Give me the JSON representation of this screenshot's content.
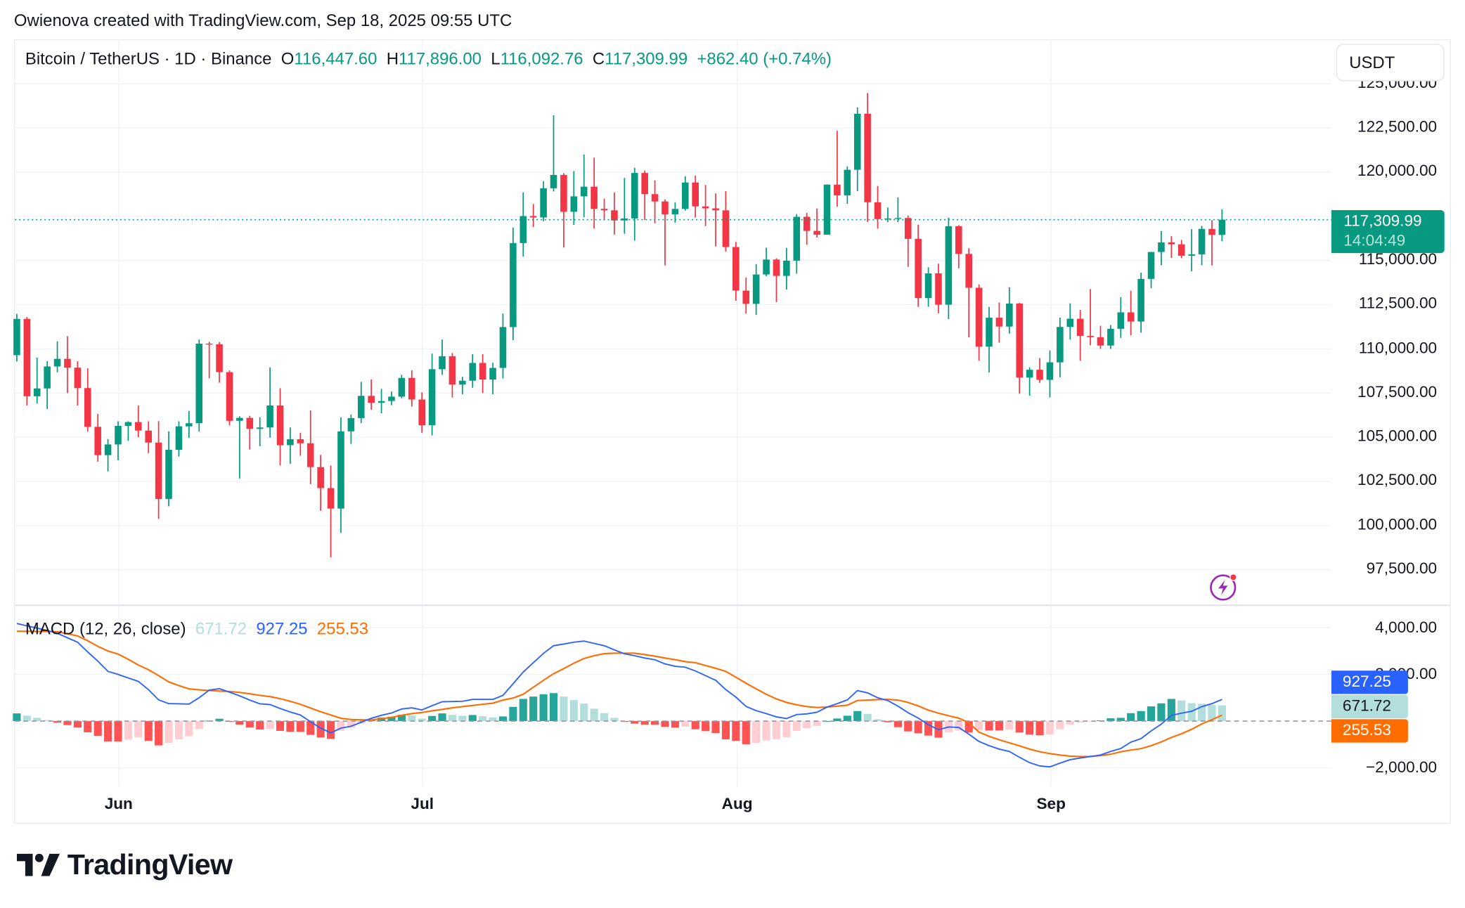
{
  "credit": "Owienova created with TradingView.com, Sep 18, 2025 09:55 UTC",
  "legend": {
    "symbol": "Bitcoin / TetherUS · 1D · Binance",
    "o_label": "O",
    "o": "116,447.60",
    "h_label": "H",
    "h": "117,896.00",
    "l_label": "L",
    "l": "116,092.76",
    "c_label": "C",
    "c": "117,309.99",
    "change": "+862.40 (+0.74%)"
  },
  "currency_button": "USDT",
  "last_price": {
    "value": "117,309.99",
    "countdown": "14:04:49"
  },
  "price_axis": [
    "125,000.00",
    "122,500.00",
    "120,000.00",
    "115,000.00",
    "112,500.00",
    "110,000.00",
    "107,500.00",
    "105,000.00",
    "102,500.00",
    "100,000.00",
    "97,500.00"
  ],
  "macd": {
    "title": "MACD (12, 26, close)",
    "histogram": "671.72",
    "macd": "927.25",
    "signal": "255.53",
    "axis": [
      "4,000.00",
      "2,000.00",
      "−2,000.00"
    ]
  },
  "months": [
    "Jun",
    "Jul",
    "Aug",
    "Sep"
  ],
  "brand": "TradingView",
  "colors": {
    "up": "#089981",
    "down": "#f23645",
    "macd": "#2962ff",
    "signal": "#ff6d00",
    "hist_up_strong": "#26a69a",
    "hist_up_weak": "#b2dfdb",
    "hist_down_strong": "#ff5252",
    "hist_down_weak": "#ffcdd2",
    "alert": "#9c27b0"
  },
  "chart_data": {
    "type": "candlestick",
    "price_range": [
      96000,
      125500
    ],
    "grid": true,
    "candles": [
      [
        "May 22",
        109643,
        111980,
        109285,
        111696
      ],
      [
        "May 23",
        111696,
        111800,
        106800,
        107318
      ],
      [
        "May 24",
        107318,
        109500,
        106900,
        107761
      ],
      [
        "May 25",
        107761,
        109300,
        106600,
        109004
      ],
      [
        "May 26",
        109004,
        110422,
        108670,
        109434
      ],
      [
        "May 27",
        109434,
        110718,
        107500,
        108938
      ],
      [
        "May 28",
        108938,
        109300,
        106793,
        107781
      ],
      [
        "May 29",
        107781,
        108900,
        105322,
        105589
      ],
      [
        "May 30",
        105589,
        106313,
        103621,
        103985
      ],
      [
        "May 31",
        103985,
        104900,
        103068,
        104591
      ],
      [
        "Jun 1",
        104591,
        105900,
        103700,
        105642
      ],
      [
        "Jun 2",
        105642,
        105900,
        104800,
        105857
      ],
      [
        "Jun 3",
        105857,
        106800,
        105000,
        105376
      ],
      [
        "Jun 4",
        105376,
        105900,
        104100,
        104696
      ],
      [
        "Jun 5",
        104696,
        105909,
        100372,
        101508
      ],
      [
        "Jun 6",
        101508,
        105333,
        101095,
        104288
      ],
      [
        "Jun 7",
        104288,
        105900,
        103910,
        105615
      ],
      [
        "Jun 8",
        105615,
        106488,
        104964,
        105793
      ],
      [
        "Jun 9",
        105793,
        110530,
        105318,
        110294
      ],
      [
        "Jun 10",
        110294,
        110400,
        108331,
        110257
      ],
      [
        "Jun 11",
        110257,
        110384,
        108086,
        108686
      ],
      [
        "Jun 12",
        108686,
        108780,
        105671,
        105929
      ],
      [
        "Jun 13",
        105929,
        106182,
        102664,
        106094
      ],
      [
        "Jun 14",
        106094,
        106213,
        104300,
        105472
      ],
      [
        "Jun 15",
        105472,
        106128,
        104494,
        105552
      ],
      [
        "Jun 16",
        105552,
        108952,
        104980,
        106797
      ],
      [
        "Jun 17",
        106797,
        107771,
        103400,
        104551
      ],
      [
        "Jun 18",
        104551,
        105550,
        103500,
        104886
      ],
      [
        "Jun 19",
        104886,
        105250,
        103950,
        104658
      ],
      [
        "Jun 20",
        104658,
        106524,
        102345,
        103310
      ],
      [
        "Jun 21",
        103310,
        104000,
        100837,
        102120
      ],
      [
        "Jun 22",
        102120,
        103400,
        98200,
        100963
      ],
      [
        "Jun 23",
        100963,
        106128,
        99588,
        105333
      ],
      [
        "Jun 24",
        105333,
        106290,
        104622,
        106083
      ],
      [
        "Jun 25",
        106083,
        108135,
        105800,
        107340
      ],
      [
        "Jun 26",
        107340,
        108272,
        106555,
        106947
      ],
      [
        "Jun 27",
        106947,
        107735,
        106356,
        107047
      ],
      [
        "Jun 28",
        107047,
        107588,
        106812,
        107296
      ],
      [
        "Jun 29",
        107296,
        108528,
        107204,
        108356
      ],
      [
        "Jun 30",
        108356,
        108789,
        106733,
        107135
      ],
      [
        "Jul 1",
        107135,
        107540,
        105250,
        105681
      ],
      [
        "Jul 2",
        105681,
        109730,
        105100,
        108849
      ],
      [
        "Jul 3",
        108849,
        110529,
        108530,
        109584
      ],
      [
        "Jul 4",
        109584,
        109767,
        107245,
        107984
      ],
      [
        "Jul 5",
        107984,
        108420,
        107429,
        108198
      ],
      [
        "Jul 6",
        108198,
        109700,
        107800,
        109203
      ],
      [
        "Jul 7",
        109203,
        109700,
        107500,
        108262
      ],
      [
        "Jul 8",
        108262,
        109216,
        107429,
        108922
      ],
      [
        "Jul 9",
        108922,
        111999,
        108324,
        111233
      ],
      [
        "Jul 10",
        111233,
        116868,
        110500,
        115987
      ],
      [
        "Jul 11",
        115987,
        118856,
        115222,
        117516
      ],
      [
        "Jul 12",
        117516,
        118200,
        116900,
        117435
      ],
      [
        "Jul 13",
        117435,
        119488,
        117224,
        119086
      ],
      [
        "Jul 14",
        119086,
        123218,
        118905,
        119841
      ],
      [
        "Jul 15",
        119841,
        119940,
        115736,
        117758
      ],
      [
        "Jul 16",
        117758,
        120063,
        117017,
        118630
      ],
      [
        "Jul 17",
        118630,
        120998,
        117453,
        119177
      ],
      [
        "Jul 18",
        119177,
        120820,
        116812,
        117924
      ],
      [
        "Jul 19",
        117924,
        118499,
        117277,
        117840
      ],
      [
        "Jul 20",
        117840,
        118856,
        116467,
        117265
      ],
      [
        "Jul 21",
        117265,
        119676,
        116515,
        117380
      ],
      [
        "Jul 22",
        117380,
        120247,
        116128,
        119954
      ],
      [
        "Jul 23",
        119954,
        120090,
        117301,
        118755
      ],
      [
        "Jul 24",
        118755,
        119535,
        117103,
        118340
      ],
      [
        "Jul 25",
        118340,
        118451,
        114723,
        117614
      ],
      [
        "Jul 26",
        117614,
        118297,
        117138,
        117919
      ],
      [
        "Jul 27",
        117919,
        119766,
        117825,
        119415
      ],
      [
        "Jul 28",
        119415,
        119800,
        117427,
        118062
      ],
      [
        "Jul 29",
        118062,
        119273,
        116950,
        117950
      ],
      [
        "Jul 30",
        117950,
        118792,
        115800,
        117840
      ],
      [
        "Jul 31",
        117840,
        118922,
        115500,
        115764
      ],
      [
        "Aug 1",
        115764,
        116052,
        112722,
        113297
      ],
      [
        "Aug 2",
        113297,
        114036,
        112000,
        112546
      ],
      [
        "Aug 3",
        112546,
        114800,
        111920,
        114208
      ],
      [
        "Aug 4",
        114208,
        115720,
        114107,
        115055
      ],
      [
        "Aug 5",
        115055,
        115127,
        112650,
        114129
      ],
      [
        "Aug 6",
        114129,
        115716,
        113355,
        114992
      ],
      [
        "Aug 7",
        114992,
        117630,
        114259,
        117472
      ],
      [
        "Aug 8",
        117472,
        117700,
        115891,
        116674
      ],
      [
        "Aug 9",
        116674,
        117944,
        116299,
        116462
      ],
      [
        "Aug 10",
        116462,
        119311,
        116460,
        119294
      ],
      [
        "Aug 11",
        119294,
        122335,
        118050,
        118686
      ],
      [
        "Aug 12",
        118686,
        120324,
        118207,
        120134
      ],
      [
        "Aug 13",
        120134,
        123667,
        118920,
        123306
      ],
      [
        "Aug 14",
        123306,
        124474,
        117180,
        118295
      ],
      [
        "Aug 15",
        118295,
        119216,
        116803,
        117342
      ],
      [
        "Aug 16",
        117342,
        117999,
        117172,
        117380
      ],
      [
        "Aug 17",
        117380,
        118575,
        117172,
        117405
      ],
      [
        "Aug 18",
        117405,
        117543,
        114640,
        116227
      ],
      [
        "Aug 19",
        116227,
        117031,
        112380,
        112872
      ],
      [
        "Aug 20",
        112872,
        114615,
        112380,
        114271
      ],
      [
        "Aug 21",
        114271,
        114821,
        112015,
        112500
      ],
      [
        "Aug 22",
        112500,
        117429,
        111684,
        116936
      ],
      [
        "Aug 23",
        116936,
        117000,
        114560,
        115374
      ],
      [
        "Aug 24",
        115374,
        115700,
        110650,
        113458
      ],
      [
        "Aug 25",
        113458,
        113650,
        109329,
        110124
      ],
      [
        "Aug 26",
        110124,
        112371,
        108666,
        111763
      ],
      [
        "Aug 27",
        111763,
        112625,
        110345,
        111262
      ],
      [
        "Aug 28",
        111262,
        113485,
        110862,
        112566
      ],
      [
        "Aug 29",
        112566,
        112600,
        107463,
        108377
      ],
      [
        "Aug 30",
        108377,
        108956,
        107350,
        108816
      ],
      [
        "Aug 31",
        108816,
        109480,
        108076,
        108246
      ],
      [
        "Sep 1",
        108246,
        109912,
        107255,
        109237
      ],
      [
        "Sep 2",
        109237,
        111771,
        108393,
        111240
      ],
      [
        "Sep 3",
        111240,
        112575,
        110528,
        111705
      ],
      [
        "Sep 4",
        111705,
        112206,
        109329,
        110730
      ],
      [
        "Sep 5",
        110730,
        113384,
        110206,
        110659
      ],
      [
        "Sep 6",
        110659,
        111305,
        110000,
        110187
      ],
      [
        "Sep 7",
        110187,
        111350,
        110000,
        111137
      ],
      [
        "Sep 8",
        111137,
        112924,
        110621,
        112065
      ],
      [
        "Sep 9",
        112065,
        113293,
        110766,
        111546
      ],
      [
        "Sep 10",
        111546,
        114313,
        110917,
        113960
      ],
      [
        "Sep 11",
        113960,
        115488,
        113430,
        115482
      ],
      [
        "Sep 12",
        115482,
        116665,
        114728,
        116029
      ],
      [
        "Sep 13",
        116029,
        116384,
        115150,
        115918
      ],
      [
        "Sep 14",
        115918,
        116165,
        115135,
        115268
      ],
      [
        "Sep 15",
        115268,
        116781,
        114384,
        115349
      ],
      [
        "Sep 16",
        115349,
        116964,
        114737,
        116788
      ],
      [
        "Sep 17",
        116788,
        117286,
        114720,
        116447
      ],
      [
        "Sep 18",
        116447.6,
        117896.0,
        116092.76,
        117309.99
      ]
    ],
    "macd_range": [
      -2600,
      4300
    ],
    "macd_line": [
      4180,
      4080,
      3980,
      3880,
      3760,
      3570,
      3380,
      2960,
      2570,
      2130,
      2000,
      1850,
      1700,
      1350,
      910,
      750,
      740,
      730,
      1000,
      1330,
      1390,
      1240,
      1080,
      900,
      740,
      710,
      540,
      390,
      260,
      -30,
      -300,
      -500,
      -300,
      -220,
      -50,
      120,
      250,
      350,
      520,
      570,
      480,
      660,
      830,
      840,
      850,
      930,
      930,
      930,
      1100,
      1600,
      2100,
      2500,
      2900,
      3230,
      3300,
      3380,
      3430,
      3330,
      3230,
      3050,
      2880,
      2800,
      2700,
      2630,
      2450,
      2350,
      2310,
      2150,
      1950,
      1750,
      1350,
      1030,
      630,
      450,
      320,
      180,
      110,
      280,
      310,
      380,
      600,
      750,
      910,
      1310,
      1210,
      1000,
      880,
      640,
      360,
      130,
      -150,
      -370,
      -250,
      -270,
      -560,
      -870,
      -1050,
      -1200,
      -1300,
      -1550,
      -1780,
      -1920,
      -1960,
      -1800,
      -1650,
      -1580,
      -1520,
      -1450,
      -1300,
      -1170,
      -900,
      -750,
      -420,
      -130,
      250,
      340,
      420,
      620,
      750,
      927.25
    ],
    "signal_line": [
      3850,
      3845,
      3840,
      3835,
      3830,
      3740,
      3650,
      3440,
      3200,
      3000,
      2870,
      2650,
      2400,
      2200,
      1950,
      1680,
      1520,
      1380,
      1340,
      1310,
      1290,
      1270,
      1230,
      1170,
      1100,
      1050,
      960,
      850,
      720,
      560,
      400,
      260,
      120,
      70,
      55,
      50,
      100,
      160,
      250,
      320,
      370,
      440,
      500,
      570,
      620,
      670,
      720,
      770,
      900,
      990,
      1150,
      1450,
      1750,
      2030,
      2250,
      2480,
      2680,
      2800,
      2890,
      2910,
      2910,
      2910,
      2850,
      2780,
      2700,
      2630,
      2550,
      2500,
      2380,
      2260,
      2130,
      1880,
      1620,
      1380,
      1150,
      950,
      800,
      700,
      620,
      585,
      600,
      640,
      680,
      880,
      900,
      920,
      930,
      900,
      800,
      650,
      470,
      340,
      230,
      130,
      -70,
      -470,
      -650,
      -800,
      -930,
      -1060,
      -1200,
      -1310,
      -1390,
      -1450,
      -1500,
      -1520,
      -1510,
      -1480,
      -1420,
      -1310,
      -1240,
      -1180,
      -1050,
      -890,
      -700,
      -540,
      -350,
      -120,
      60,
      255.53
    ]
  }
}
